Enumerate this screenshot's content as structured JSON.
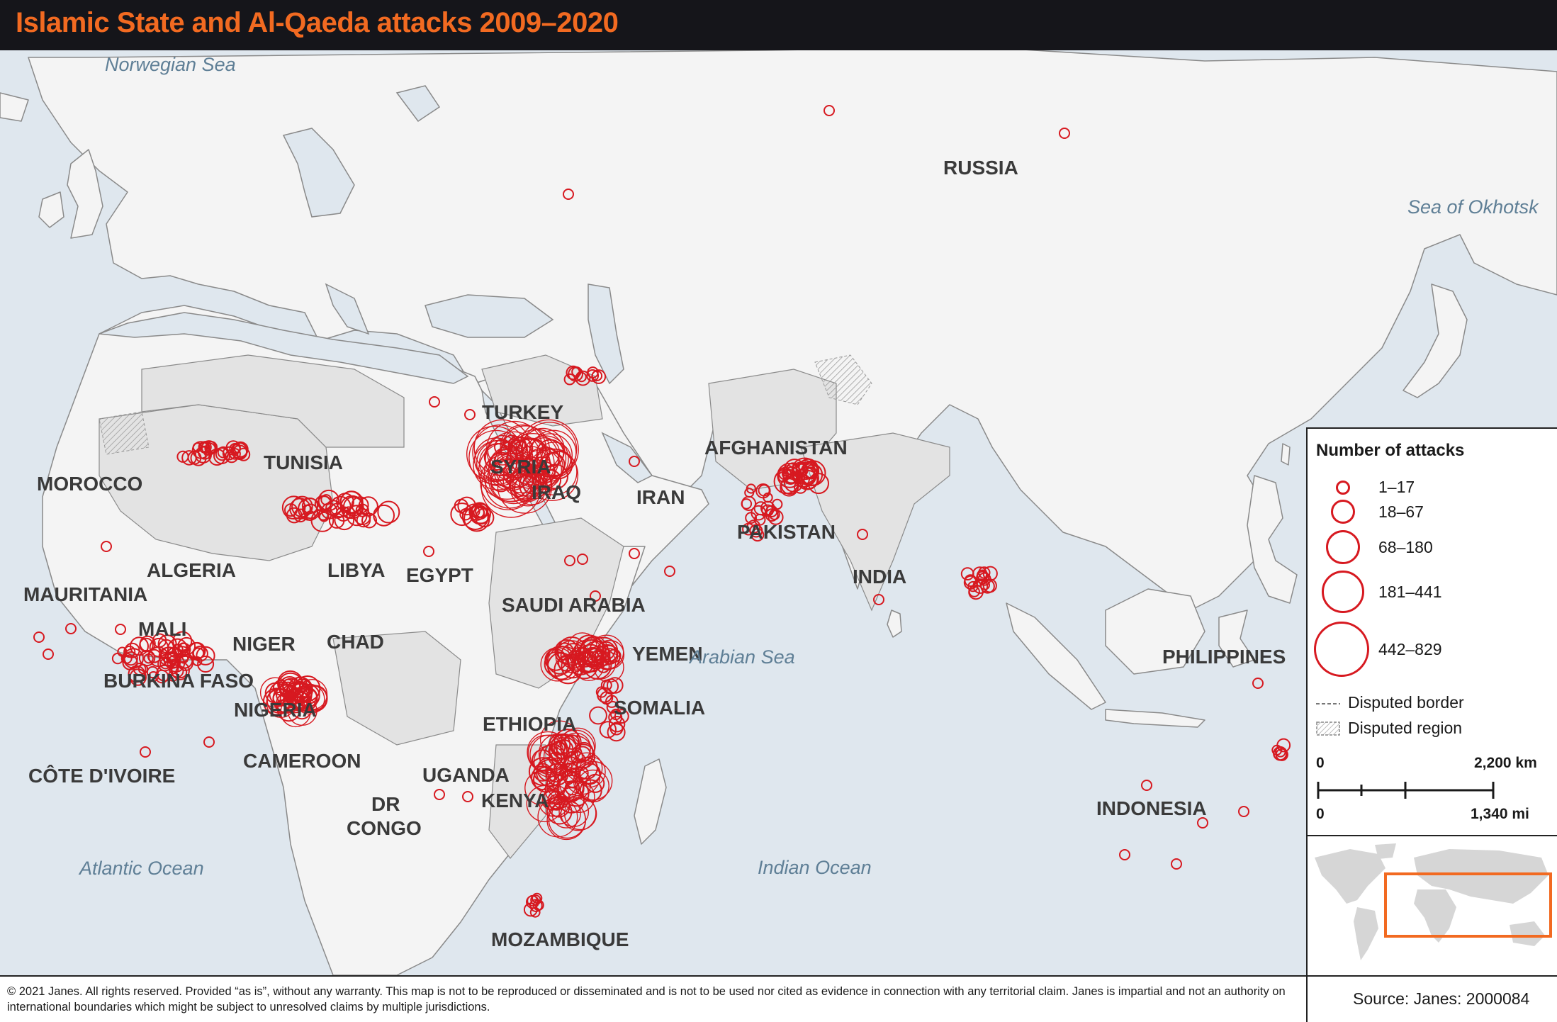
{
  "title": "Islamic State and Al-Qaeda attacks 2009–2020",
  "colors": {
    "attack": "#d71920",
    "accent": "#f26a21",
    "water": "#dfe7ee",
    "land": "#f4f4f4",
    "land_shaded": "#e3e3e3",
    "border": "#8a8a8a"
  },
  "map_labels": {
    "countries": [
      "RUSSIA",
      "TURKEY",
      "SYRIA",
      "IRAQ",
      "IRAN",
      "AFGHANISTAN",
      "PAKISTAN",
      "INDIA",
      "MOROCCO",
      "TUNISIA",
      "ALGERIA",
      "LIBYA",
      "EGYPT",
      "MAURITANIA",
      "MALI",
      "NIGER",
      "CHAD",
      "BURKINA FASO",
      "NIGERIA",
      "CAMEROON",
      "CÔTE D'IVOIRE",
      "SAUDI ARABIA",
      "YEMEN",
      "SOMALIA",
      "ETHIOPIA",
      "UGANDA",
      "KENYA",
      "DR",
      "CONGO",
      "MOZAMBIQUE",
      "PHILIPPINES",
      "INDONESIA"
    ],
    "seas": [
      "Norwegian Sea",
      "Sea of Okhotsk",
      "Arabian Sea",
      "Atlantic Ocean",
      "Indian Ocean"
    ]
  },
  "legend": {
    "title": "Number of attacks",
    "classes": [
      {
        "label": "1–17"
      },
      {
        "label": "18–67"
      },
      {
        "label": "68–180"
      },
      {
        "label": "181–441"
      },
      {
        "label": "442–829"
      }
    ],
    "disputed_border": "Disputed border",
    "disputed_region": "Disputed region",
    "scale": {
      "km_start": "0",
      "km_end": "2,200 km",
      "mi_start": "0",
      "mi_end": "1,340 mi"
    }
  },
  "footer": {
    "copyright": "© 2021 Janes. All rights reserved. Provided “as is”, without any warranty. This map is not to be reproduced or disseminated and is not to be used nor cited as evidence in connection with any territorial claim. Janes is impartial and not an authority on international boundaries which might be subject to unresolved claims by multiple jurisdictions.",
    "source": "Source: Janes: 2000084"
  }
}
